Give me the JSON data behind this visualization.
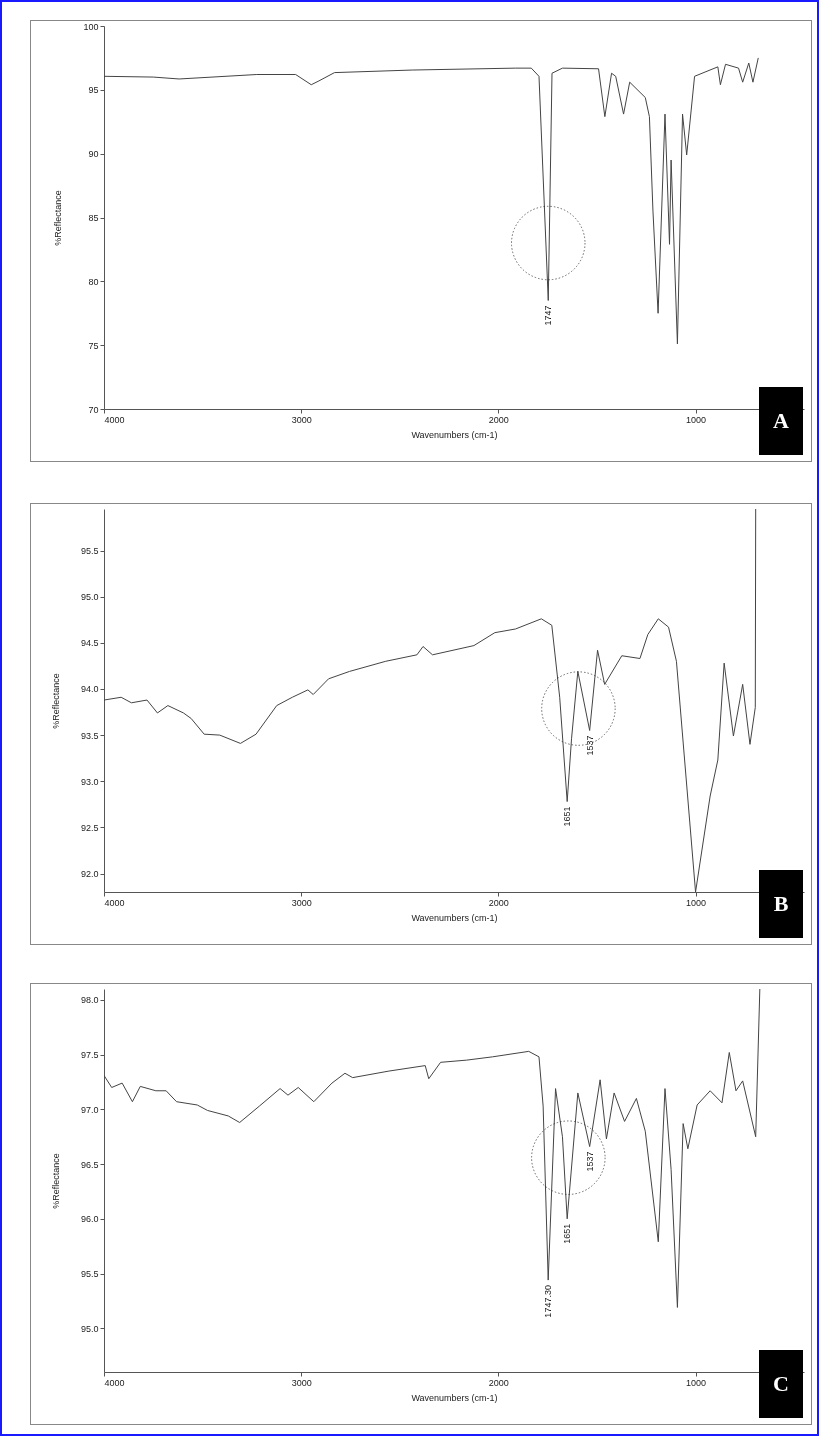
{
  "chart_data": [
    {
      "type": "line",
      "xlabel": "Wavenumbers (cm-1)",
      "ylabel": "%Reflectance",
      "color": "#444444",
      "xlim": [
        4000,
        450
      ],
      "ylim": [
        70,
        100
      ],
      "xticks": [
        4000,
        3000,
        2000,
        1000
      ],
      "yticks": [
        70,
        75,
        80,
        85,
        90,
        95,
        100
      ],
      "x": [
        4000,
        3750,
        3619,
        3225,
        3028,
        2949,
        2910,
        2831,
        2437,
        1912,
        1833,
        1794,
        1747,
        1728,
        1675,
        1492,
        1460,
        1426,
        1405,
        1365,
        1334,
        1255,
        1234,
        1216,
        1190,
        1155,
        1132,
        1124,
        1092,
        1066,
        1045,
        1005,
        887,
        874,
        848,
        782,
        761,
        730,
        709,
        682
      ],
      "values": [
        96.06,
        96.0,
        95.85,
        96.2,
        96.2,
        95.4,
        95.7,
        96.35,
        96.55,
        96.7,
        96.7,
        96.06,
        78.5,
        96.3,
        96.7,
        96.65,
        92.9,
        96.3,
        96.06,
        93.1,
        95.6,
        94.4,
        92.9,
        85.5,
        77.5,
        93.1,
        82.9,
        89.5,
        75.1,
        93.1,
        89.9,
        96.06,
        96.8,
        95.4,
        97.0,
        96.7,
        95.6,
        97.1,
        95.6,
        97.5
      ],
      "annotations": [
        {
          "text": "1747",
          "x": 1747,
          "y": 78.5
        },
        "A"
      ]
    },
    {
      "type": "line",
      "xlabel": "Wavenumbers (cm-1)",
      "ylabel": "%Reflectance",
      "color": "#444444",
      "xlim": [
        4000,
        450
      ],
      "ylim": [
        91.8,
        95.95
      ],
      "xticks": [
        4000,
        3000,
        2000,
        1000
      ],
      "yticks": [
        {
          "value": 92,
          "label": "92.0"
        },
        92.5,
        {
          "value": 93,
          "label": "93.0"
        },
        93.5,
        {
          "value": 94,
          "label": "94.0"
        },
        94.5,
        {
          "value": 95,
          "label": "95.0"
        },
        95.5
      ],
      "x": [
        4000,
        3913,
        3861,
        3782,
        3729,
        3676,
        3597,
        3558,
        3492,
        3413,
        3308,
        3229,
        3124,
        3045,
        2966,
        2939,
        2861,
        2755,
        2571,
        2413,
        2382,
        2334,
        2124,
        2018,
        1913,
        1782,
        1729,
        1689,
        1651,
        1629,
        1597,
        1537,
        1497,
        1461,
        1374,
        1282,
        1242,
        1189,
        1137,
        1097,
        1000,
        926,
        887,
        855,
        808,
        761,
        724,
        697,
        695
      ],
      "values": [
        93.88,
        93.91,
        93.85,
        93.88,
        93.74,
        93.82,
        93.74,
        93.68,
        93.51,
        93.5,
        93.41,
        93.51,
        93.82,
        93.91,
        93.99,
        93.94,
        94.11,
        94.19,
        94.3,
        94.37,
        94.46,
        94.37,
        94.47,
        94.61,
        94.65,
        94.76,
        94.69,
        93.91,
        92.78,
        93.46,
        94.19,
        93.55,
        94.42,
        94.05,
        94.36,
        94.33,
        94.59,
        94.76,
        94.67,
        94.3,
        91.8,
        92.84,
        93.23,
        94.28,
        93.49,
        94.05,
        93.4,
        93.8,
        95.95
      ],
      "annotations": [
        {
          "text": "1651",
          "x": 1651,
          "y": 92.78
        },
        {
          "text": "1537",
          "x": 1537,
          "y": 93.55
        },
        "B"
      ]
    },
    {
      "type": "line",
      "xlabel": "Wavenumbers (cm-1)",
      "ylabel": "%Reflectance",
      "color": "#444444",
      "xlim": [
        4000,
        450
      ],
      "ylim": [
        94.6,
        98.1
      ],
      "xticks": [
        4000,
        3000,
        2000,
        1000
      ],
      "yticks": [
        {
          "value": 95,
          "label": "95.0"
        },
        95.5,
        {
          "value": 96,
          "label": "96.0"
        },
        96.5,
        {
          "value": 97,
          "label": "97.0"
        },
        97.5,
        {
          "value": 98,
          "label": "98.0"
        }
      ],
      "x": [
        4000,
        3961,
        3908,
        3856,
        3816,
        3737,
        3685,
        3632,
        3527,
        3475,
        3370,
        3312,
        3212,
        3107,
        3067,
        3015,
        2936,
        2844,
        2778,
        2739,
        2555,
        2371,
        2353,
        2293,
        2161,
        2030,
        1846,
        1794,
        1773,
        1747.3,
        1710,
        1675,
        1651,
        1597,
        1537,
        1484,
        1452,
        1413,
        1360,
        1300,
        1255,
        1189,
        1155,
        1124,
        1092,
        1063,
        1039,
        992,
        926,
        866,
        829,
        795,
        761,
        695,
        674
      ],
      "values": [
        97.31,
        97.2,
        97.24,
        97.07,
        97.21,
        97.17,
        97.17,
        97.07,
        97.04,
        96.99,
        96.94,
        96.88,
        97.03,
        97.19,
        97.13,
        97.2,
        97.07,
        97.24,
        97.33,
        97.29,
        97.35,
        97.4,
        97.28,
        97.43,
        97.45,
        97.48,
        97.53,
        97.48,
        97.03,
        95.44,
        97.19,
        96.75,
        96.0,
        97.15,
        96.66,
        97.27,
        96.73,
        97.15,
        96.89,
        97.1,
        96.8,
        95.79,
        97.19,
        96.45,
        95.19,
        96.87,
        96.64,
        97.04,
        97.17,
        97.06,
        97.52,
        97.17,
        97.26,
        96.75,
        98.1
      ],
      "annotations": [
        {
          "text": "1747.30",
          "x": 1747.3,
          "y": 95.44
        },
        {
          "text": "1651",
          "x": 1651,
          "y": 96.0
        },
        {
          "text": "1537",
          "x": 1537,
          "y": 96.66
        },
        "C"
      ]
    }
  ]
}
